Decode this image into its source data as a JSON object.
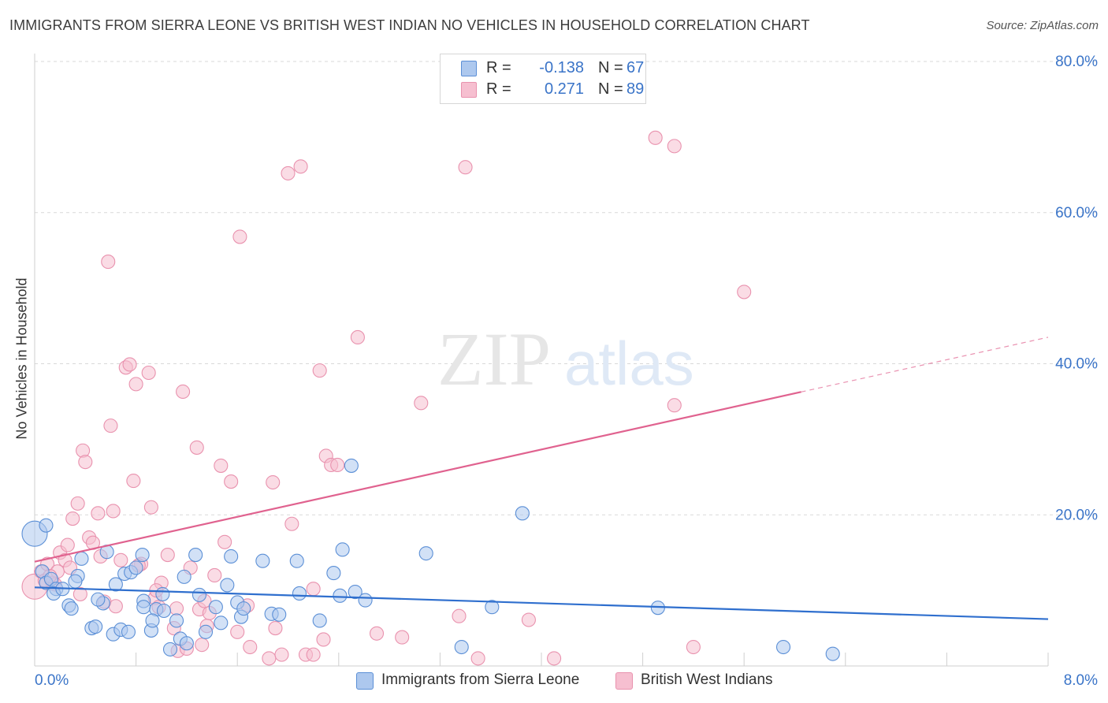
{
  "title": "IMMIGRANTS FROM SIERRA LEONE VS BRITISH WEST INDIAN NO VEHICLES IN HOUSEHOLD CORRELATION CHART",
  "source": "Source: ZipAtlas.com",
  "watermark": {
    "zip": "ZIP",
    "atlas": "atlas"
  },
  "legend": {
    "r_label": "R =",
    "n_label": "N =",
    "series1": {
      "r": "-0.138",
      "n": "67"
    },
    "series2": {
      "r": "0.271",
      "n": "89"
    }
  },
  "colors": {
    "blue_fill": "#adc8ee",
    "blue_stroke": "#5b8fd6",
    "blue_line": "#2f6fce",
    "pink_fill": "#f6bfd0",
    "pink_stroke": "#e992ae",
    "pink_line": "#e0628f",
    "axis_text": "#3a74c8"
  },
  "chart_data": {
    "type": "scatter",
    "title": "IMMIGRANTS FROM SIERRA LEONE VS BRITISH WEST INDIAN NO VEHICLES IN HOUSEHOLD CORRELATION CHART",
    "xlabel": "",
    "ylabel": "No Vehicles in Household",
    "xlim": [
      0,
      8
    ],
    "ylim": [
      0,
      80
    ],
    "x_tick_labels": [
      "0.0%",
      "8.0%"
    ],
    "y_ticks": [
      20,
      40,
      60,
      80
    ],
    "y_tick_labels": [
      "20.0%",
      "40.0%",
      "60.0%",
      "80.0%"
    ],
    "grid": true,
    "legend_position": "top-center",
    "series": [
      {
        "name": "Immigrants from Sierra Leone",
        "color": "#5b8fd6",
        "trend": {
          "x": [
            0,
            8
          ],
          "y": [
            10.4,
            6.2
          ],
          "solid_until": 8
        },
        "points": [
          [
            0.0,
            17.5
          ],
          [
            0.09,
            18.6
          ],
          [
            0.06,
            12.5
          ],
          [
            0.09,
            11.0
          ],
          [
            0.13,
            11.5
          ],
          [
            0.17,
            10.2
          ],
          [
            0.15,
            9.6
          ],
          [
            0.22,
            10.2
          ],
          [
            0.27,
            8.0
          ],
          [
            0.29,
            7.6
          ],
          [
            0.34,
            11.9
          ],
          [
            0.37,
            14.2
          ],
          [
            0.57,
            15.1
          ],
          [
            0.45,
            5.0
          ],
          [
            0.48,
            5.2
          ],
          [
            0.54,
            8.3
          ],
          [
            0.64,
            10.8
          ],
          [
            0.62,
            4.2
          ],
          [
            0.68,
            4.8
          ],
          [
            0.74,
            4.5
          ],
          [
            0.71,
            12.2
          ],
          [
            0.76,
            12.4
          ],
          [
            0.8,
            13.0
          ],
          [
            0.85,
            14.7
          ],
          [
            0.86,
            8.6
          ],
          [
            0.86,
            7.8
          ],
          [
            0.92,
            4.7
          ],
          [
            0.96,
            7.5
          ],
          [
            1.01,
            9.5
          ],
          [
            1.02,
            7.3
          ],
          [
            1.07,
            2.2
          ],
          [
            1.12,
            6.0
          ],
          [
            1.15,
            3.6
          ],
          [
            1.18,
            11.8
          ],
          [
            1.27,
            14.7
          ],
          [
            1.3,
            9.4
          ],
          [
            1.35,
            4.5
          ],
          [
            1.43,
            7.8
          ],
          [
            1.47,
            5.7
          ],
          [
            1.52,
            10.7
          ],
          [
            1.55,
            14.5
          ],
          [
            1.6,
            8.4
          ],
          [
            1.63,
            6.5
          ],
          [
            1.65,
            7.6
          ],
          [
            1.8,
            13.9
          ],
          [
            1.87,
            6.9
          ],
          [
            1.93,
            6.8
          ],
          [
            2.07,
            13.9
          ],
          [
            2.09,
            9.6
          ],
          [
            2.25,
            6.0
          ],
          [
            2.36,
            12.3
          ],
          [
            2.41,
            9.3
          ],
          [
            2.43,
            15.4
          ],
          [
            2.53,
            9.8
          ],
          [
            2.5,
            26.5
          ],
          [
            2.61,
            8.7
          ],
          [
            3.09,
            14.9
          ],
          [
            3.37,
            2.5
          ],
          [
            3.61,
            7.8
          ],
          [
            3.85,
            20.2
          ],
          [
            4.92,
            7.7
          ],
          [
            5.91,
            2.5
          ],
          [
            6.3,
            1.6
          ],
          [
            0.32,
            11.2
          ],
          [
            0.5,
            8.8
          ],
          [
            0.93,
            6.0
          ],
          [
            1.2,
            3.0
          ]
        ]
      },
      {
        "name": "British West Indians",
        "color": "#e992ae",
        "trend": {
          "x": [
            0,
            8
          ],
          "y": [
            13.8,
            43.5
          ],
          "solid_until": 6.05
        },
        "points": [
          [
            0.0,
            10.5
          ],
          [
            0.05,
            12.5
          ],
          [
            0.1,
            13.5
          ],
          [
            0.14,
            11.0
          ],
          [
            0.18,
            12.5
          ],
          [
            0.2,
            15.0
          ],
          [
            0.24,
            14.0
          ],
          [
            0.26,
            16.0
          ],
          [
            0.3,
            19.5
          ],
          [
            0.34,
            21.5
          ],
          [
            0.38,
            28.5
          ],
          [
            0.4,
            27.0
          ],
          [
            0.43,
            17.0
          ],
          [
            0.46,
            16.3
          ],
          [
            0.5,
            20.2
          ],
          [
            0.52,
            14.5
          ],
          [
            0.55,
            8.5
          ],
          [
            0.58,
            53.5
          ],
          [
            0.6,
            31.8
          ],
          [
            0.62,
            20.5
          ],
          [
            0.68,
            14.0
          ],
          [
            0.72,
            39.5
          ],
          [
            0.75,
            39.9
          ],
          [
            0.78,
            24.5
          ],
          [
            0.8,
            37.3
          ],
          [
            0.84,
            13.5
          ],
          [
            0.9,
            38.8
          ],
          [
            0.92,
            21.0
          ],
          [
            0.95,
            9.0
          ],
          [
            0.98,
            7.8
          ],
          [
            1.0,
            11.0
          ],
          [
            1.05,
            14.7
          ],
          [
            1.1,
            5.0
          ],
          [
            1.13,
            2.0
          ],
          [
            1.17,
            36.3
          ],
          [
            1.2,
            2.3
          ],
          [
            1.23,
            13.0
          ],
          [
            1.28,
            28.9
          ],
          [
            1.3,
            7.5
          ],
          [
            1.32,
            2.8
          ],
          [
            1.36,
            5.3
          ],
          [
            1.38,
            7.0
          ],
          [
            1.42,
            12.0
          ],
          [
            1.47,
            26.5
          ],
          [
            1.5,
            16.4
          ],
          [
            1.55,
            24.4
          ],
          [
            1.6,
            4.5
          ],
          [
            1.62,
            56.8
          ],
          [
            1.68,
            8.0
          ],
          [
            1.7,
            2.5
          ],
          [
            1.85,
            1.0
          ],
          [
            1.88,
            24.3
          ],
          [
            1.95,
            1.5
          ],
          [
            2.0,
            65.2
          ],
          [
            2.03,
            18.8
          ],
          [
            2.1,
            66.1
          ],
          [
            2.14,
            1.5
          ],
          [
            2.2,
            10.2
          ],
          [
            2.25,
            39.1
          ],
          [
            2.28,
            3.5
          ],
          [
            2.3,
            27.8
          ],
          [
            2.34,
            26.6
          ],
          [
            2.39,
            26.6
          ],
          [
            2.55,
            43.5
          ],
          [
            2.7,
            4.3
          ],
          [
            2.9,
            3.8
          ],
          [
            3.05,
            34.8
          ],
          [
            3.35,
            6.6
          ],
          [
            3.5,
            1.0
          ],
          [
            3.4,
            66.0
          ],
          [
            3.9,
            6.1
          ],
          [
            4.1,
            1.0
          ],
          [
            4.9,
            69.9
          ],
          [
            5.05,
            34.5
          ],
          [
            5.05,
            68.8
          ],
          [
            5.2,
            2.5
          ],
          [
            5.6,
            49.5
          ],
          [
            0.08,
            11.3
          ],
          [
            0.16,
            10.8
          ],
          [
            0.12,
            11.9
          ],
          [
            0.28,
            13.0
          ],
          [
            0.36,
            9.5
          ],
          [
            0.64,
            7.9
          ],
          [
            0.82,
            13.3
          ],
          [
            1.12,
            7.6
          ],
          [
            1.34,
            8.6
          ],
          [
            1.9,
            5.0
          ],
          [
            2.2,
            1.5
          ],
          [
            0.96,
            10.0
          ]
        ]
      }
    ]
  },
  "bottom_legend": {
    "series1_label": "Immigrants from Sierra Leone",
    "series2_label": "British West Indians"
  }
}
